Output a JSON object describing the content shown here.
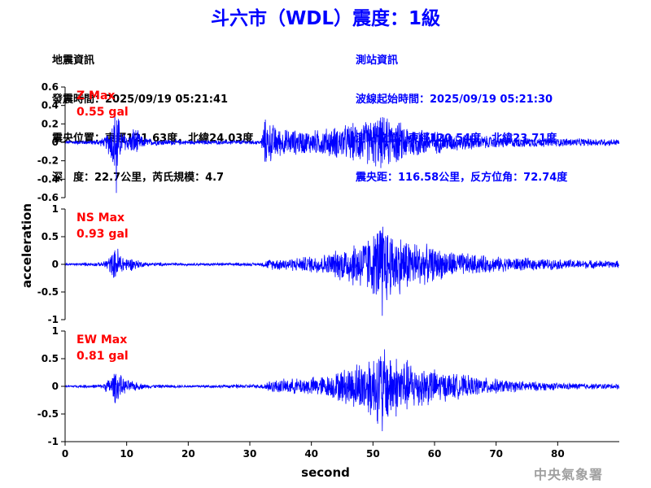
{
  "page": {
    "title": "斗六市（WDL）震度：1級",
    "title_color": "#0000ff",
    "left_info": [
      "地震資訊",
      "發震時間：2025/09/19 05:21:41",
      "震央位置：東經121.63度，北緯24.03度",
      "深　度：22.7公里，芮氏規模：4.7"
    ],
    "right_info": [
      "測站資訊",
      "波線起始時間：2025/09/19 05:21:30",
      "測站位置：東經120.54度，北緯23.71度",
      "震央距：116.58公里，反方位角：72.74度"
    ],
    "right_info_color": "#0000ff",
    "agency": "中央氣象署"
  },
  "chart_data": {
    "type": "line",
    "xlabel": "second",
    "ylabel": "acceleration",
    "xlim": [
      0,
      90
    ],
    "xticks": [
      0,
      10,
      20,
      30,
      40,
      50,
      60,
      70,
      80
    ],
    "series_color": "#0000ff",
    "label_color": "#ff0000",
    "panels": [
      {
        "name": "Z Max",
        "max_label": "0.55 gal",
        "peak": 0.55,
        "ylim": [
          -0.6,
          0.6
        ],
        "yticks": [
          -0.6,
          -0.4,
          -0.2,
          0,
          0.2,
          0.4,
          0.6
        ],
        "envelope": [
          [
            0,
            0.02
          ],
          [
            5,
            0.03
          ],
          [
            6.5,
            0.06
          ],
          [
            7.5,
            0.22
          ],
          [
            8.3,
            0.55
          ],
          [
            9,
            0.15
          ],
          [
            10.5,
            0.09
          ],
          [
            11.2,
            0.2
          ],
          [
            12.5,
            0.07
          ],
          [
            14,
            0.04
          ],
          [
            20,
            0.025
          ],
          [
            31.8,
            0.025
          ],
          [
            32.4,
            0.28
          ],
          [
            35,
            0.16
          ],
          [
            40,
            0.14
          ],
          [
            45,
            0.2
          ],
          [
            49,
            0.26
          ],
          [
            51,
            0.32
          ],
          [
            53,
            0.28
          ],
          [
            56,
            0.2
          ],
          [
            62,
            0.11
          ],
          [
            70,
            0.07
          ],
          [
            80,
            0.05
          ],
          [
            90,
            0.04
          ]
        ]
      },
      {
        "name": "NS Max",
        "max_label": "0.93 gal",
        "peak": 0.93,
        "ylim": [
          -1,
          1
        ],
        "yticks": [
          -1,
          -0.5,
          0,
          0.5,
          1
        ],
        "envelope": [
          [
            0,
            0.02
          ],
          [
            6,
            0.04
          ],
          [
            7.5,
            0.2
          ],
          [
            8.5,
            0.36
          ],
          [
            9.5,
            0.15
          ],
          [
            11,
            0.12
          ],
          [
            13,
            0.04
          ],
          [
            20,
            0.025
          ],
          [
            31.8,
            0.03
          ],
          [
            33,
            0.1
          ],
          [
            38,
            0.14
          ],
          [
            43,
            0.22
          ],
          [
            47,
            0.45
          ],
          [
            50,
            0.6
          ],
          [
            51.5,
            0.93
          ],
          [
            53,
            0.65
          ],
          [
            56,
            0.5
          ],
          [
            60,
            0.32
          ],
          [
            65,
            0.22
          ],
          [
            70,
            0.15
          ],
          [
            80,
            0.1
          ],
          [
            90,
            0.07
          ]
        ]
      },
      {
        "name": "EW Max",
        "max_label": "0.81 gal",
        "peak": 0.81,
        "ylim": [
          -1,
          1
        ],
        "yticks": [
          -1,
          -0.5,
          0,
          0.5,
          1
        ],
        "envelope": [
          [
            0,
            0.02
          ],
          [
            6,
            0.04
          ],
          [
            7.5,
            0.2
          ],
          [
            8.2,
            0.34
          ],
          [
            9.5,
            0.15
          ],
          [
            11,
            0.1
          ],
          [
            13,
            0.04
          ],
          [
            20,
            0.025
          ],
          [
            31.8,
            0.04
          ],
          [
            33,
            0.12
          ],
          [
            38,
            0.16
          ],
          [
            43,
            0.22
          ],
          [
            47,
            0.45
          ],
          [
            50,
            0.65
          ],
          [
            51.5,
            0.81
          ],
          [
            54,
            0.6
          ],
          [
            57,
            0.45
          ],
          [
            61,
            0.3
          ],
          [
            66,
            0.2
          ],
          [
            72,
            0.12
          ],
          [
            80,
            0.07
          ],
          [
            90,
            0.05
          ]
        ]
      }
    ]
  }
}
